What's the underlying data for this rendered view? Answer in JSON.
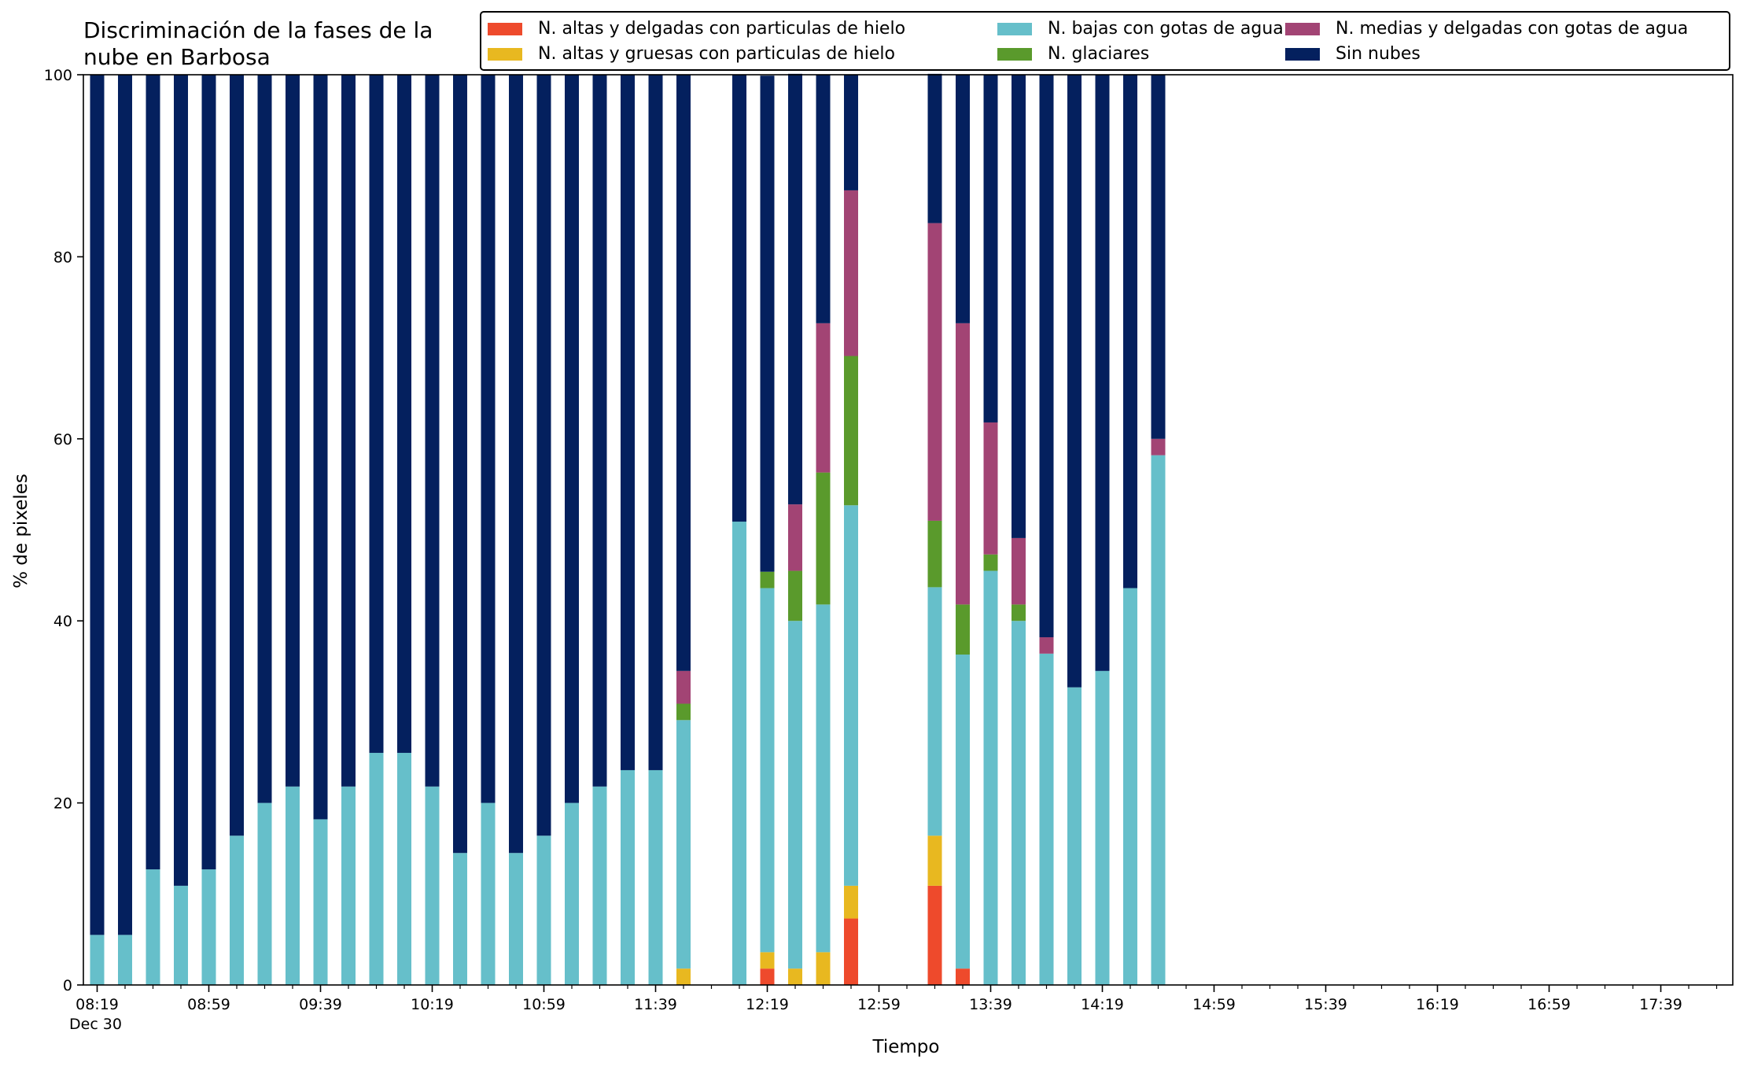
{
  "chart_data": {
    "type": "bar",
    "stacked": true,
    "title": "Discriminación de la fases de la\nnube en Barbosa",
    "xlabel": "Tiempo",
    "ylabel": "% de pixeles",
    "ylim": [
      0,
      100
    ],
    "yticks": [
      "0",
      "20",
      "40",
      "60",
      "80",
      "100"
    ],
    "x_tick_labels": [
      "08:19",
      "08:59",
      "09:39",
      "10:19",
      "10:59",
      "11:39",
      "12:19",
      "12:59",
      "13:39",
      "14:19",
      "14:59",
      "15:39",
      "16:19",
      "16:59",
      "17:39"
    ],
    "x_date_label": "Dec 30",
    "legend_position": "top",
    "grid": false,
    "categories": [
      "08:19",
      "08:29",
      "08:39",
      "08:49",
      "08:59",
      "09:09",
      "09:19",
      "09:29",
      "09:39",
      "09:49",
      "09:59",
      "10:09",
      "10:19",
      "10:29",
      "10:39",
      "10:49",
      "10:59",
      "11:09",
      "11:19",
      "11:29",
      "11:39",
      "11:49",
      "11:59",
      "12:09",
      "12:19",
      "12:29",
      "12:39",
      "12:49",
      "12:59",
      "13:09",
      "13:19",
      "13:29",
      "13:39",
      "13:49",
      "13:59",
      "14:09",
      "14:19",
      "14:29",
      "14:39"
    ],
    "series": [
      {
        "name": "N. altas y delgadas con particulas de hielo",
        "color": "#ee4a2c",
        "values": [
          0,
          0,
          0,
          0,
          0,
          0,
          0,
          0,
          0,
          0,
          0,
          0,
          0,
          0,
          0,
          0,
          0,
          0,
          0,
          0,
          0,
          0,
          0,
          0,
          1.8,
          0,
          0,
          7.3,
          null,
          0,
          10.9,
          1.8,
          0,
          0,
          0,
          0,
          0,
          0,
          0
        ]
      },
      {
        "name": "N. altas y gruesas con particulas de hielo",
        "color": "#e8b820",
        "values": [
          0,
          0,
          0,
          0,
          0,
          0,
          0,
          0,
          0,
          0,
          0,
          0,
          0,
          0,
          0,
          0,
          0,
          0,
          0,
          0,
          0,
          1.8,
          null,
          0,
          1.8,
          1.8,
          3.6,
          3.6,
          null,
          0,
          5.5,
          0,
          0,
          0,
          0,
          0,
          0,
          0,
          0
        ]
      },
      {
        "name": "N. bajas con gotas de agua",
        "color": "#66bfca",
        "values": [
          5.5,
          5.5,
          12.7,
          10.9,
          12.7,
          16.4,
          20.0,
          21.8,
          18.2,
          21.8,
          25.5,
          25.5,
          21.8,
          14.5,
          20.0,
          14.5,
          16.4,
          20.0,
          21.8,
          23.6,
          23.6,
          27.3,
          null,
          50.9,
          40.0,
          38.2,
          38.2,
          41.8,
          null,
          0,
          27.3,
          34.5,
          45.5,
          40.0,
          36.4,
          32.7,
          34.5,
          43.6,
          58.2
        ]
      },
      {
        "name": "N. glaciares",
        "color": "#5a9a2c",
        "values": [
          0,
          0,
          0,
          0,
          0,
          0,
          0,
          0,
          0,
          0,
          0,
          0,
          0,
          0,
          0,
          0,
          0,
          0,
          0,
          0,
          0,
          1.8,
          null,
          0,
          1.8,
          5.5,
          14.5,
          16.4,
          null,
          0,
          7.3,
          5.5,
          1.8,
          1.8,
          0,
          0,
          0,
          0,
          0
        ]
      },
      {
        "name": "N. medias y delgadas con gotas de agua",
        "color": "#a24474",
        "values": [
          0,
          0,
          0,
          0,
          0,
          0,
          0,
          0,
          0,
          0,
          0,
          0,
          0,
          0,
          0,
          0,
          0,
          0,
          0,
          0,
          0,
          3.6,
          null,
          0,
          0,
          7.3,
          16.4,
          18.2,
          null,
          0,
          32.7,
          30.9,
          14.5,
          7.3,
          1.8,
          0,
          0,
          0,
          1.8
        ]
      },
      {
        "name": "Sin nubes",
        "color": "#04205e",
        "values": [
          94.5,
          94.5,
          87.3,
          89.1,
          87.3,
          83.6,
          80.0,
          78.2,
          81.8,
          78.2,
          74.5,
          74.5,
          78.2,
          85.5,
          80.0,
          85.5,
          83.6,
          80.0,
          78.2,
          76.4,
          76.4,
          65.5,
          null,
          49.1,
          54.5,
          47.3,
          27.3,
          12.7,
          null,
          0,
          16.4,
          27.3,
          38.2,
          50.9,
          61.8,
          67.3,
          65.5,
          56.4,
          40.0
        ]
      }
    ]
  }
}
